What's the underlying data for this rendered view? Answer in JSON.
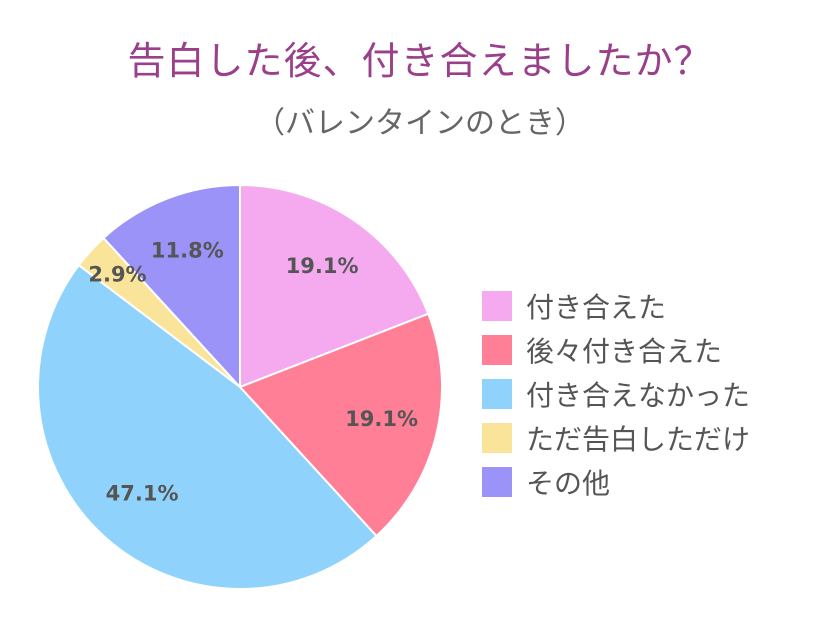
{
  "chart_data": {
    "type": "pie",
    "title": "告白した後、付き合えましたか？",
    "subtitle": "（バレンタインのとき）",
    "legend_position": "right",
    "slices": [
      {
        "label": "付き合えた",
        "value": 19.1,
        "display": "19.1%",
        "color": "#f5aaf0"
      },
      {
        "label": "後々付き合えた",
        "value": 19.1,
        "display": "19.1%",
        "color": "#ff7f96"
      },
      {
        "label": "付き合えなかった",
        "value": 47.1,
        "display": "47.1%",
        "color": "#8fd3fc"
      },
      {
        "label": "ただ告白しただけ",
        "value": 2.9,
        "display": "2.9%",
        "color": "#f9e49a"
      },
      {
        "label": "その他",
        "value": 11.8,
        "display": "11.8%",
        "color": "#9b93f8"
      }
    ]
  }
}
